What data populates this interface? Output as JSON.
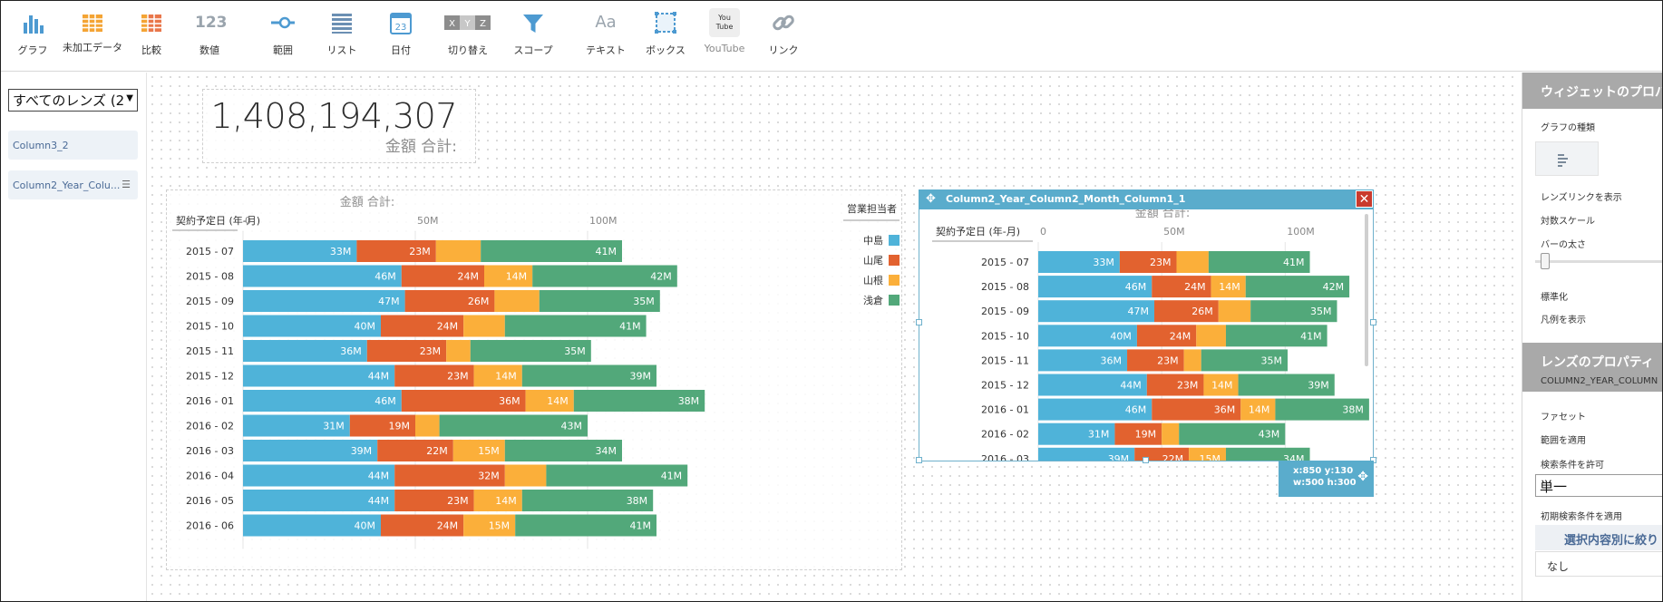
{
  "toolbar": {
    "items": [
      {
        "label": "グラフ",
        "icon": "bar-chart-icon"
      },
      {
        "label": "未加工データ",
        "icon": "grid-table-icon"
      },
      {
        "label": "比較",
        "icon": "compare-table-icon"
      },
      {
        "label": "数値",
        "icon": "number-icon",
        "glyph": "123"
      },
      {
        "label": "範囲",
        "icon": "range-slider-icon"
      },
      {
        "label": "リスト",
        "icon": "list-icon"
      },
      {
        "label": "日付",
        "icon": "calendar-icon",
        "glyph": "23"
      },
      {
        "label": "切り替え",
        "icon": "toggle-icon",
        "glyphs": [
          "X",
          "Y",
          "Z"
        ]
      },
      {
        "label": "スコープ",
        "icon": "filter-funnel-icon"
      },
      {
        "label": "テキスト",
        "icon": "text-icon",
        "glyph": "Aa"
      },
      {
        "label": "ボックス",
        "icon": "box-icon"
      },
      {
        "label": "YouTube",
        "icon": "youtube-icon",
        "glyph": "You Tube"
      },
      {
        "label": "リンク",
        "icon": "link-icon"
      }
    ]
  },
  "left_panel": {
    "lens_select": "すべてのレンズ (2",
    "lenses": [
      "Column3_2",
      "Column2_Year_Colu..."
    ]
  },
  "number_widget": {
    "value": "1,408,194,307",
    "label": "金額 合計:"
  },
  "selected_widget": {
    "title": "Column2_Year_Column2_Month_Column1_1",
    "coord_line1": "x:850 y:130",
    "coord_line2": "w:500 h:300"
  },
  "right_panel": {
    "widget_props_header": "ウィジェットのプロパティ",
    "chart_type_label": "グラフの種類",
    "lens_link_label": "レンズリンクを表示",
    "log_scale_label": "対数スケール",
    "bar_thickness_label": "バーの太さ",
    "normalize_label": "標準化",
    "show_legend_label": "凡例を表示",
    "lens_props_header": "レンズのプロパティ",
    "lens_name": "COLUMN2_YEAR_COLUMN",
    "facet_label": "ファセット",
    "apply_scope_label": "範囲を適用",
    "allow_filter_label": "検索条件を許可",
    "filter_mode_value": "単一",
    "initial_filter_label": "初期検索条件を適用",
    "filter_by_selection_button": "選択内容別に絞り",
    "none_value": "なし"
  },
  "colors": {
    "nakajima": "#4fb3d9",
    "yamao": "#e2622f",
    "yamane": "#fbaf3a",
    "asakura": "#52a87a",
    "selection": "#5aaccc",
    "close": "#c93a2d"
  },
  "chart_data": {
    "type": "bar",
    "orientation": "horizontal",
    "stacked": true,
    "title": "金額 合計:",
    "ylabel": "契約予定日 (年-月)",
    "xlim": [
      0,
      130000000
    ],
    "x_ticks": [
      {
        "value": 0,
        "label": "0"
      },
      {
        "value": 50000000,
        "label": "50M"
      },
      {
        "value": 100000000,
        "label": "100M"
      }
    ],
    "legend_title": "営業担当者",
    "legend_position": "right",
    "categories": [
      "2015 - 07",
      "2015 - 08",
      "2015 - 09",
      "2015 - 10",
      "2015 - 11",
      "2015 - 12",
      "2016 - 01",
      "2016 - 02",
      "2016 - 03",
      "2016 - 04",
      "2016 - 05",
      "2016 - 06"
    ],
    "series": [
      {
        "name": "中島",
        "color": "#4fb3d9",
        "values": [
          33000000,
          46000000,
          47000000,
          40000000,
          36000000,
          44000000,
          46000000,
          31000000,
          39000000,
          44000000,
          44000000,
          40000000
        ],
        "labels": [
          "33M",
          "46M",
          "47M",
          "40M",
          "36M",
          "44M",
          "46M",
          "31M",
          "39M",
          "44M",
          "44M",
          "40M"
        ]
      },
      {
        "name": "山尾",
        "color": "#e2622f",
        "values": [
          23000000,
          24000000,
          26000000,
          24000000,
          23000000,
          23000000,
          36000000,
          19000000,
          22000000,
          32000000,
          23000000,
          24000000
        ],
        "labels": [
          "23M",
          "24M",
          "26M",
          "24M",
          "23M",
          "23M",
          "36M",
          "19M",
          "22M",
          "32M",
          "23M",
          "24M"
        ]
      },
      {
        "name": "山根",
        "color": "#fbaf3a",
        "values": [
          13000000,
          14000000,
          13000000,
          12000000,
          7000000,
          14000000,
          14000000,
          7000000,
          15000000,
          12000000,
          14000000,
          15000000
        ],
        "labels": [
          "",
          "14M",
          "",
          "",
          "",
          "14M",
          "14M",
          "",
          "15M",
          "",
          "14M",
          "15M"
        ]
      },
      {
        "name": "浅倉",
        "color": "#52a87a",
        "values": [
          41000000,
          42000000,
          35000000,
          41000000,
          35000000,
          39000000,
          38000000,
          43000000,
          34000000,
          41000000,
          38000000,
          41000000
        ],
        "labels": [
          "41M",
          "42M",
          "35M",
          "41M",
          "35M",
          "39M",
          "38M",
          "43M",
          "34M",
          "41M",
          "38M",
          "41M"
        ]
      }
    ]
  }
}
